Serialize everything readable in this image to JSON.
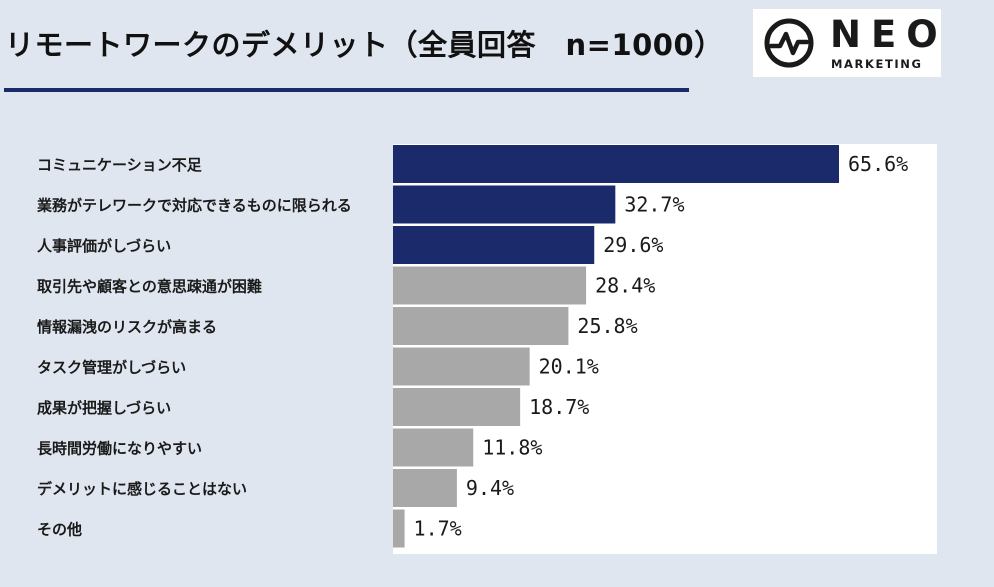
{
  "title": "リモートワークのデメリット（全員回答　n=1000）",
  "logo": {
    "word": "NEO",
    "sub": "MARKETING",
    "icon": "pulse-circle-icon"
  },
  "colors": {
    "background": "#dfe6ef",
    "accent": "#1b2a6b",
    "highlight_bar": "#1b2a6b",
    "other_bar": "#a8a8a8"
  },
  "chart_data": {
    "type": "bar",
    "orientation": "horizontal",
    "title": "リモートワークのデメリット（全員回答　n=1000）",
    "xlabel": "",
    "ylabel": "",
    "unit": "%",
    "xlim": [
      0,
      80
    ],
    "grid": false,
    "legend": "none",
    "categories": [
      "コミュニケーション不足",
      "業務がテレワークで対応できるものに限られる",
      "人事評価がしづらい",
      "取引先や顧客との意思疎通が困難",
      "情報漏洩のリスクが高まる",
      "タスク管理がしづらい",
      "成果が把握しづらい",
      "長時間労働になりやすい",
      "デメリットに感じることはない",
      "その他"
    ],
    "values": [
      65.6,
      32.7,
      29.6,
      28.4,
      25.8,
      20.1,
      18.7,
      11.8,
      9.4,
      1.7
    ],
    "value_labels": [
      "65.6%",
      "32.7%",
      "29.6%",
      "28.4%",
      "25.8%",
      "20.1%",
      "18.7%",
      "11.8%",
      "9.4%",
      "1.7%"
    ],
    "highlight_top_n": 3
  }
}
